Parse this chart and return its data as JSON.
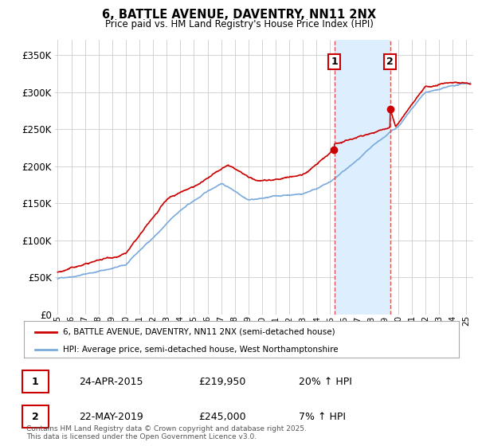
{
  "title": "6, BATTLE AVENUE, DAVENTRY, NN11 2NX",
  "subtitle": "Price paid vs. HM Land Registry's House Price Index (HPI)",
  "legend_line1": "6, BATTLE AVENUE, DAVENTRY, NN11 2NX (semi-detached house)",
  "legend_line2": "HPI: Average price, semi-detached house, West Northamptonshire",
  "annotation1_label": "1",
  "annotation1_date": "24-APR-2015",
  "annotation1_price": "£219,950",
  "annotation1_hpi": "20% ↑ HPI",
  "annotation2_label": "2",
  "annotation2_date": "22-MAY-2019",
  "annotation2_price": "£245,000",
  "annotation2_hpi": "7% ↑ HPI",
  "vline1_year": 2015.3,
  "vline2_year": 2019.4,
  "sale1_year": 2015.3,
  "sale1_price": 219950,
  "sale2_year": 2019.4,
  "sale2_price": 245000,
  "red_color": "#cc0000",
  "blue_color": "#7aaadd",
  "shade_color": "#ddeeff",
  "background_color": "#ffffff",
  "grid_color": "#cccccc",
  "ylim": [
    0,
    370000
  ],
  "xlim_start": 1994.8,
  "xlim_end": 2025.5,
  "footer": "Contains HM Land Registry data © Crown copyright and database right 2025.\nThis data is licensed under the Open Government Licence v3.0."
}
